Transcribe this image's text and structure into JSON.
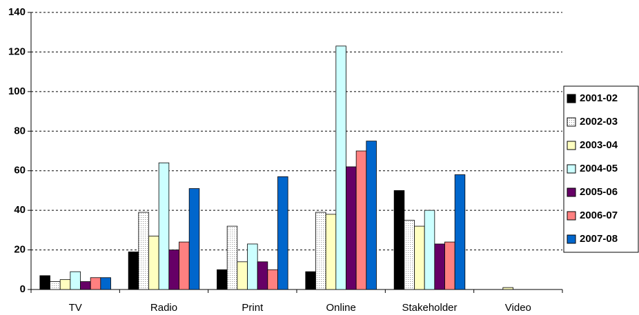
{
  "chart_data": {
    "type": "bar",
    "categories": [
      "TV",
      "Radio",
      "Print",
      "Online",
      "Stakeholder",
      "Video"
    ],
    "series": [
      {
        "name": "2001-02",
        "color": "#000000",
        "values": [
          7,
          19,
          10,
          9,
          50,
          0
        ]
      },
      {
        "name": "2002-03",
        "color": "#ffffff",
        "values": [
          4,
          39,
          32,
          39,
          35,
          0
        ]
      },
      {
        "name": "2003-04",
        "color": "#ffffc0",
        "values": [
          5,
          27,
          14,
          38,
          32,
          1
        ]
      },
      {
        "name": "2004-05",
        "color": "#ccffff",
        "values": [
          9,
          64,
          23,
          123,
          40,
          0
        ]
      },
      {
        "name": "2005-06",
        "color": "#660066",
        "values": [
          4,
          20,
          14,
          62,
          23,
          0
        ]
      },
      {
        "name": "2006-07",
        "color": "#ff8080",
        "values": [
          6,
          24,
          10,
          70,
          24,
          0
        ]
      },
      {
        "name": "2007-08",
        "color": "#0066cc",
        "values": [
          6,
          51,
          57,
          75,
          58,
          0
        ]
      }
    ],
    "ylim": [
      0,
      140
    ],
    "yticks": [
      0,
      20,
      40,
      60,
      80,
      100,
      120,
      140
    ],
    "grid": true,
    "legend": "right"
  }
}
